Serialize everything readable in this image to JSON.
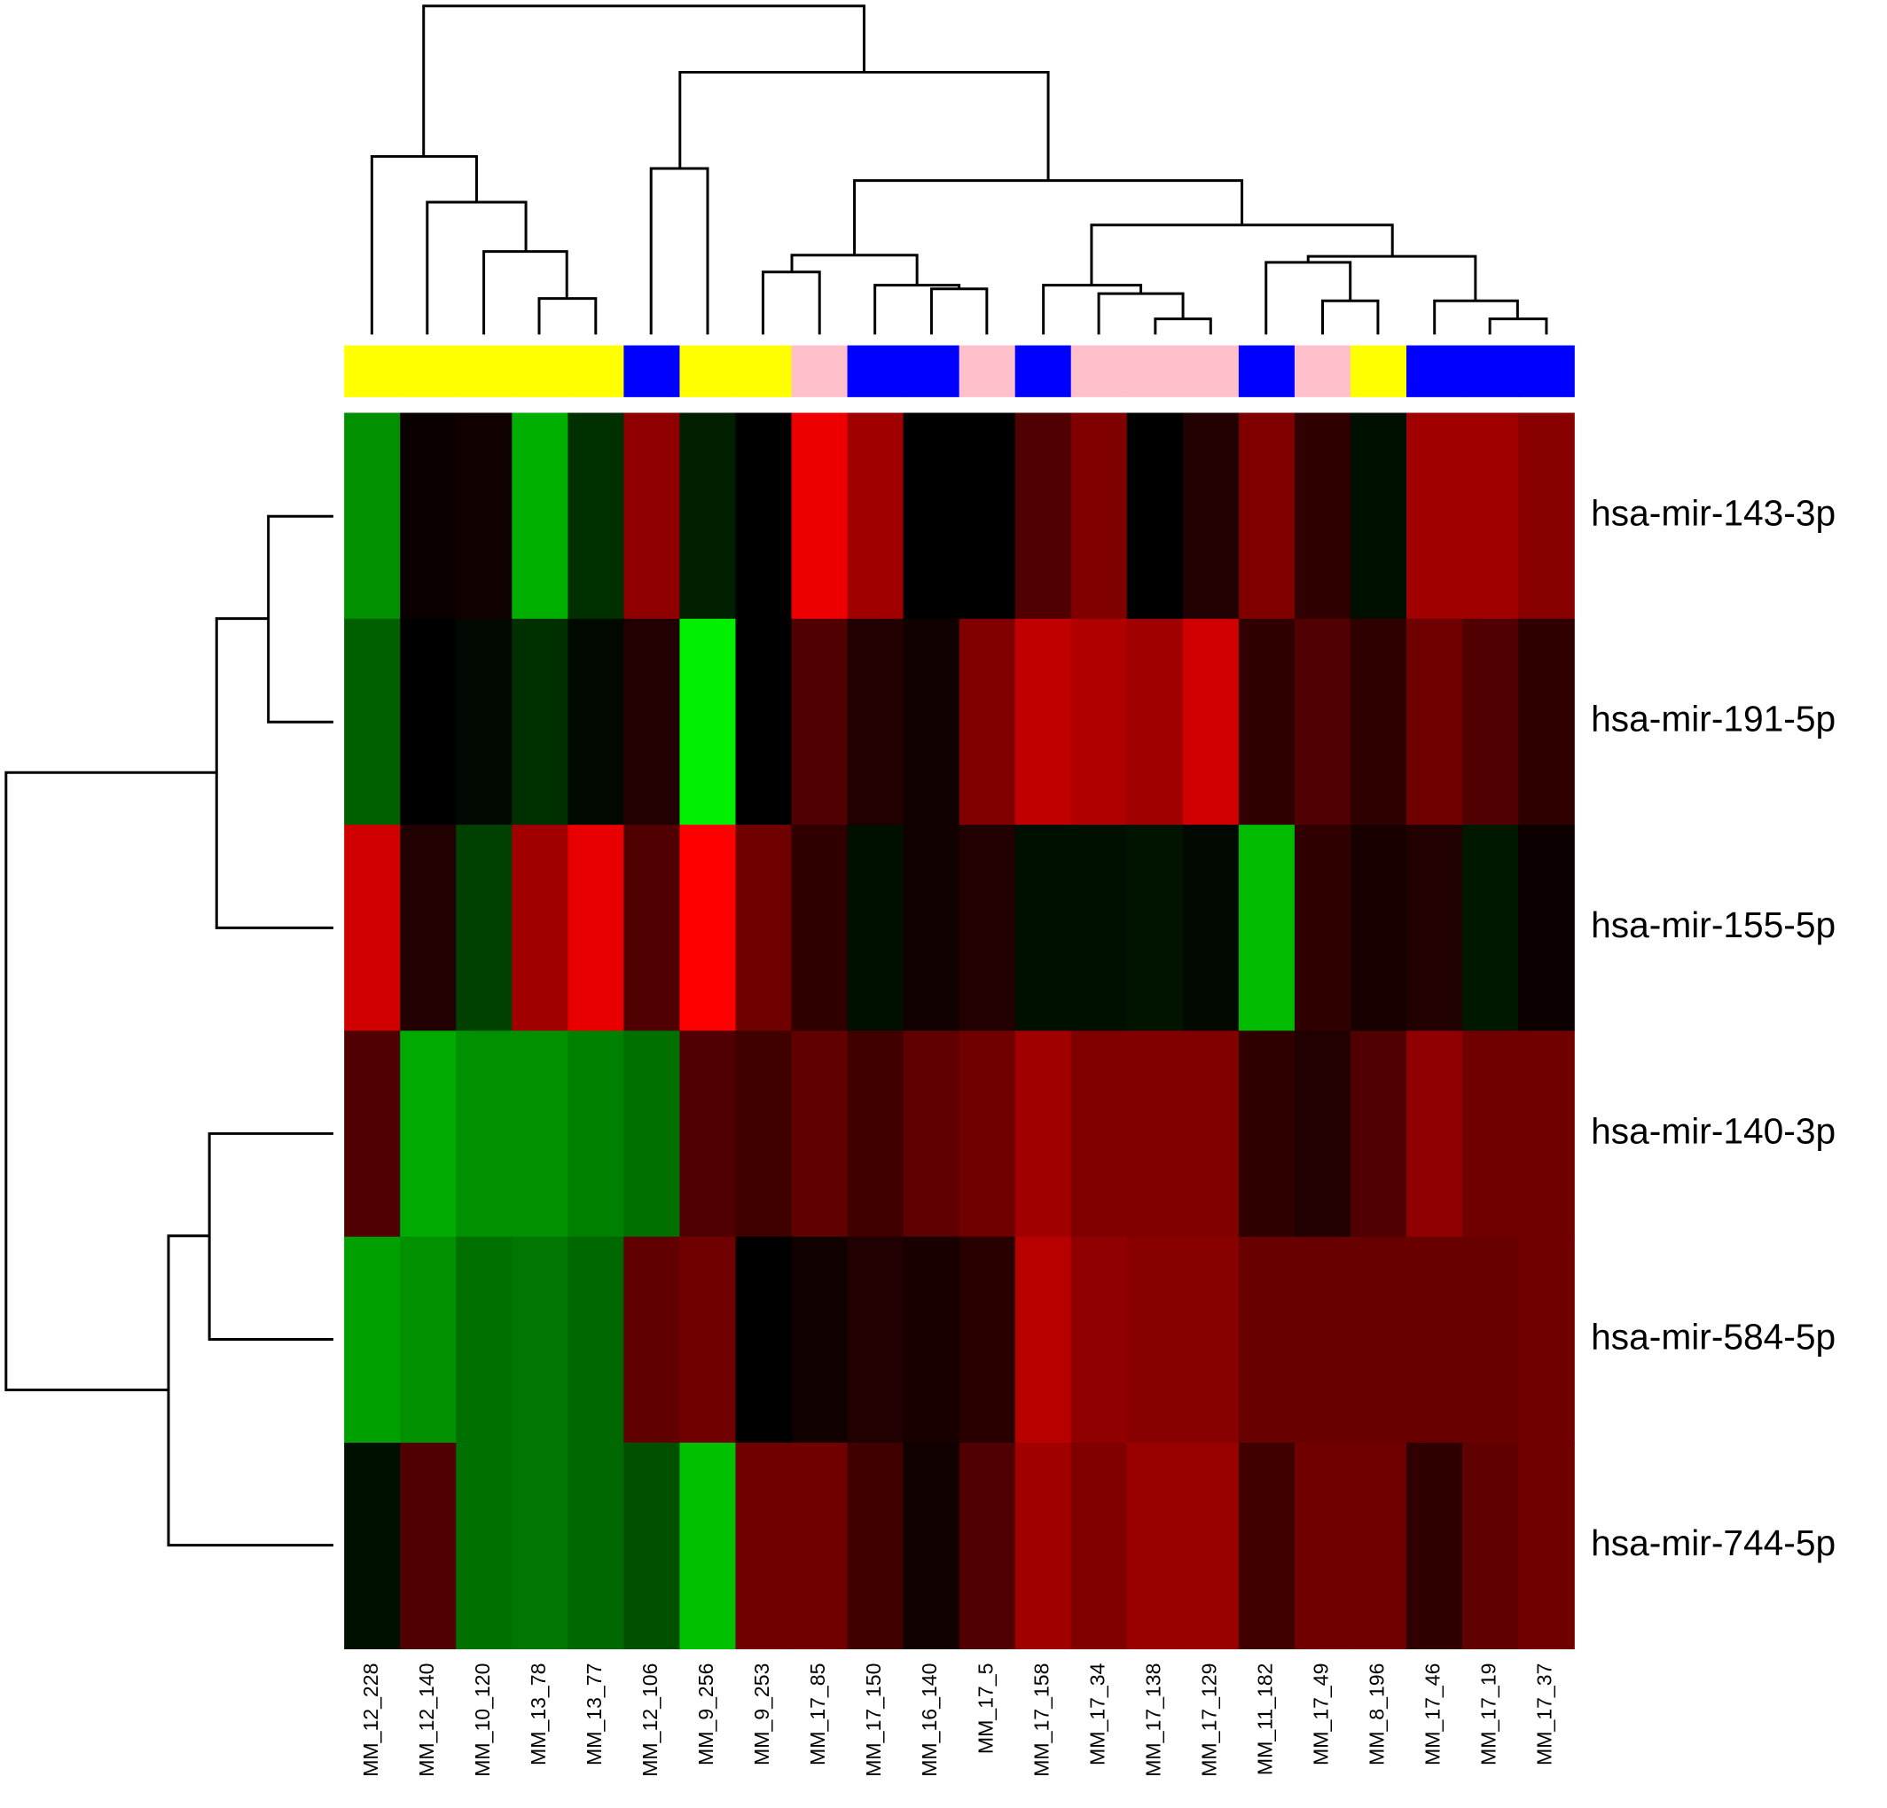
{
  "chart_data": {
    "type": "heatmap",
    "columns": [
      "MM_12_228",
      "MM_12_140",
      "MM_10_120",
      "MM_13_78",
      "MM_13_77",
      "MM_12_106",
      "MM_9_256",
      "MM_9_253",
      "MM_17_85",
      "MM_17_150",
      "MM_16_140",
      "MM_17_5",
      "MM_17_158",
      "MM_17_34",
      "MM_17_138",
      "MM_17_129",
      "MM_11_182",
      "MM_17_49",
      "MM_8_196",
      "MM_17_46",
      "MM_17_19",
      "MM_17_37"
    ],
    "rows": [
      "hsa-mir-143-3p",
      "hsa-mir-191-5p",
      "hsa-mir-155-5p",
      "hsa-mir-140-3p",
      "hsa-mir-584-5p",
      "hsa-mir-744-5p"
    ],
    "column_group_colors": [
      "#ffff00",
      "#ffff00",
      "#ffff00",
      "#ffff00",
      "#ffff00",
      "#0000ff",
      "#ffff00",
      "#ffff00",
      "#ffc0cb",
      "#0000ff",
      "#0000ff",
      "#ffc0cb",
      "#0000ff",
      "#ffc0cb",
      "#ffc0cb",
      "#ffc0cb",
      "#0000ff",
      "#ffc0cb",
      "#ffff00",
      "#0000ff",
      "#0000ff",
      "#0000ff"
    ],
    "cells": [
      [
        "#009000",
        "#0a0000",
        "#100000",
        "#00b000",
        "#003000",
        "#900000",
        "#002000",
        "#000000",
        "#ee0000",
        "#a00000",
        "#000000",
        "#000000",
        "#500000",
        "#800000",
        "#000000",
        "#200000",
        "#800000",
        "#300000",
        "#001000",
        "#a00000",
        "#a00000",
        "#880000"
      ],
      [
        "#006000",
        "#000000",
        "#000800",
        "#003000",
        "#000800",
        "#200000",
        "#00ee00",
        "#000000",
        "#500000",
        "#200000",
        "#100000",
        "#800000",
        "#c00000",
        "#b00000",
        "#a00000",
        "#d00000",
        "#300000",
        "#500000",
        "#300000",
        "#700000",
        "#500000",
        "#300000"
      ],
      [
        "#d00000",
        "#200000",
        "#004000",
        "#a00000",
        "#e80000",
        "#500000",
        "#ff0000",
        "#700000",
        "#300000",
        "#001000",
        "#100000",
        "#200000",
        "#001000",
        "#001000",
        "#001400",
        "#000800",
        "#00bb00",
        "#300000",
        "#180000",
        "#200000",
        "#001800",
        "#0c0000"
      ],
      [
        "#500000",
        "#00aa00",
        "#009000",
        "#009000",
        "#008000",
        "#007000",
        "#500000",
        "#400000",
        "#600000",
        "#400000",
        "#600000",
        "#700000",
        "#a00000",
        "#800000",
        "#800000",
        "#800000",
        "#300000",
        "#200000",
        "#500000",
        "#900000",
        "#700000",
        "#700000"
      ],
      [
        "#00a000",
        "#009000",
        "#007000",
        "#007800",
        "#006800",
        "#600000",
        "#700000",
        "#000000",
        "#100000",
        "#200000",
        "#180000",
        "#280000",
        "#b80000",
        "#900000",
        "#880000",
        "#880000",
        "#680000",
        "#680000",
        "#680000",
        "#680000",
        "#680000",
        "#700000"
      ],
      [
        "#001000",
        "#500000",
        "#007000",
        "#007800",
        "#006800",
        "#005000",
        "#00c000",
        "#700000",
        "#700000",
        "#400000",
        "#100000",
        "#500000",
        "#a00000",
        "#800000",
        "#990000",
        "#990000",
        "#400000",
        "#700000",
        "#700000",
        "#300000",
        "#600000",
        "#700000"
      ]
    ]
  }
}
